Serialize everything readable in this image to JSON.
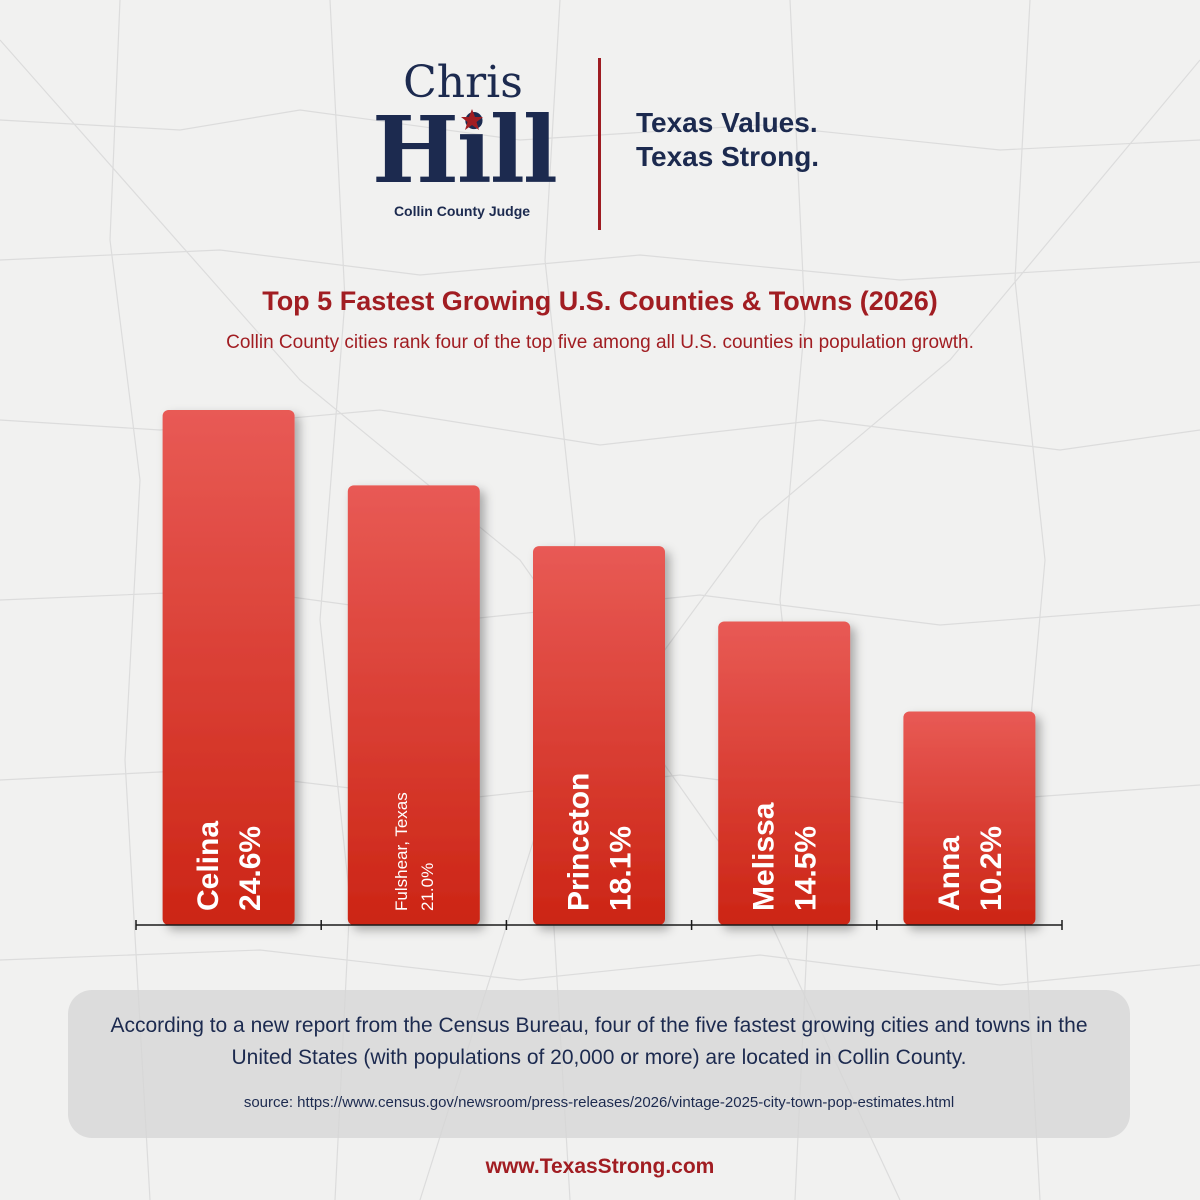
{
  "header": {
    "logo_first": "Chris",
    "logo_last": "Hill",
    "logo_subtitle": "Collin County Judge",
    "slogan_line1": "Texas Values.",
    "slogan_line2": "Texas Strong."
  },
  "colors": {
    "brand_red": "#a11d22",
    "brand_navy": "#1c2a4f",
    "bar_top": "#e85a55",
    "bar_bottom": "#cc2515",
    "bar_label": "#ffffff"
  },
  "chart_data": {
    "type": "bar",
    "title": "Top 5 Fastest Growing U.S. Counties & Towns (2026)",
    "subtitle": "Collin County cities rank four of the top five among all U.S. counties in population growth.",
    "categories": [
      "Celina",
      "Fulshear, Texas",
      "Princeton",
      "Melissa",
      "Anna"
    ],
    "values": [
      24.6,
      21.0,
      18.1,
      14.5,
      10.2
    ],
    "value_labels": [
      "24.6%",
      "21.0%",
      "18.1%",
      "14.5%",
      "10.2%"
    ],
    "ylim": [
      0,
      24.6
    ],
    "label_orientation": "vertical",
    "grid": false
  },
  "note": {
    "text": "According to a new report from the Census Bureau, four of the five fastest growing cities and towns in the United States (with populations of 20,000 or more) are located in Collin County.",
    "source": "source: https://www.census.gov/newsroom/press-releases/2026/vintage-2025-city-town-pop-estimates.html"
  },
  "footer": {
    "url": "www.TexasStrong.com"
  }
}
